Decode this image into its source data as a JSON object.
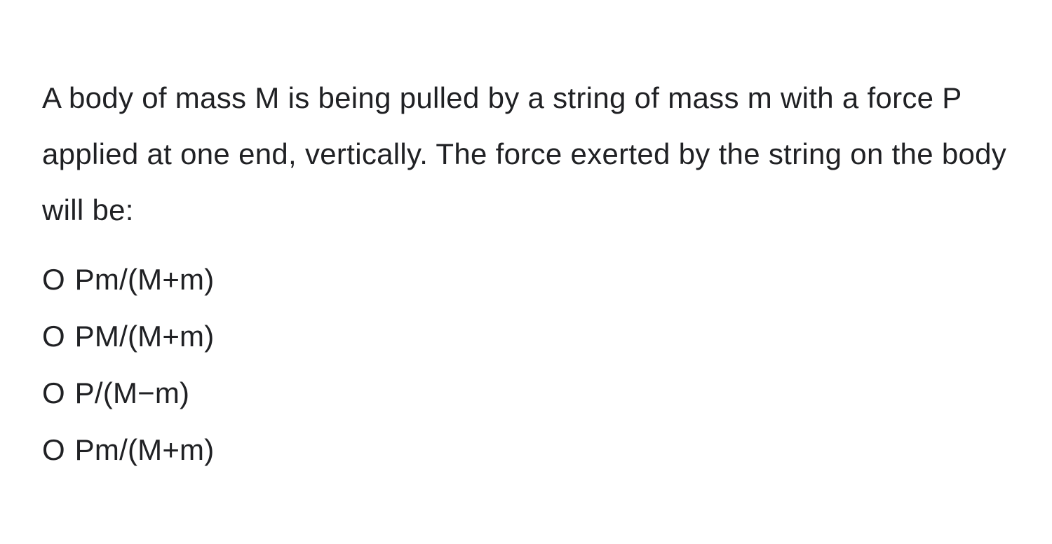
{
  "question": {
    "text": "A body of mass M is being pulled by a string of mass m with a force P applied at one end, vertically. The force exerted by the string on the body will be:",
    "font_size": 42,
    "line_height": 1.9,
    "text_color": "#202124",
    "background_color": "#ffffff"
  },
  "options": [
    {
      "label": "Pm/(M+m)",
      "radio_glyph": "O"
    },
    {
      "label": "PM/(M+m)",
      "radio_glyph": "O"
    },
    {
      "label": "P/(M−m)",
      "radio_glyph": "O"
    },
    {
      "label": "Pm/(M+m)",
      "radio_glyph": "O"
    }
  ],
  "styling": {
    "font_family": "Arial, Helvetica, sans-serif",
    "option_font_size": 42,
    "option_gap": 18,
    "radio_color": "#202124"
  }
}
